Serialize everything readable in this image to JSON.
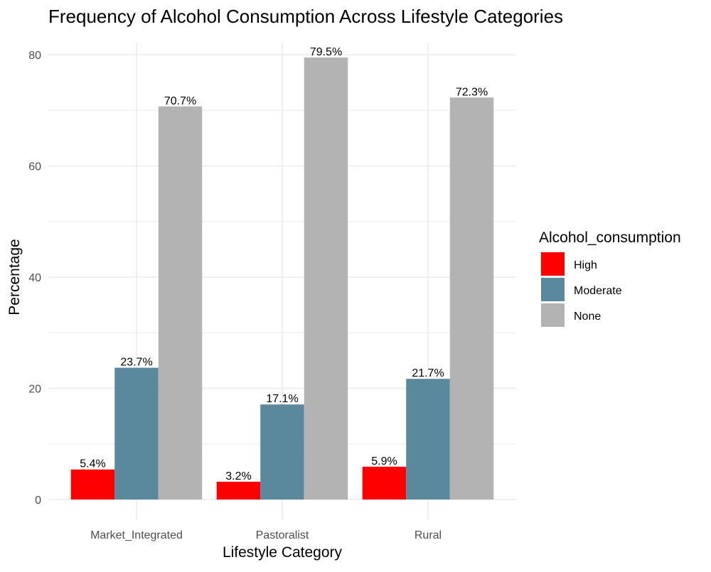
{
  "chart_data": {
    "type": "bar",
    "title": "Frequency of Alcohol Consumption Across Lifestyle Categories",
    "xlabel": "Lifestyle Category",
    "ylabel": "Percentage",
    "categories": [
      "Market_Integrated",
      "Pastoralist",
      "Rural"
    ],
    "series": [
      {
        "name": "High",
        "color": "#ff0000",
        "values": [
          5.4,
          3.2,
          5.9
        ],
        "labels": [
          "5.4%",
          "3.2%",
          "5.9%"
        ]
      },
      {
        "name": "Moderate",
        "color": "#5a889c",
        "values": [
          23.7,
          17.1,
          21.7
        ],
        "labels": [
          "23.7%",
          "17.1%",
          "21.7%"
        ]
      },
      {
        "name": "None",
        "color": "#b3b3b3",
        "values": [
          70.7,
          79.5,
          72.3
        ],
        "labels": [
          "70.7%",
          "79.5%",
          "72.3%"
        ]
      }
    ],
    "ylim": [
      0,
      80
    ],
    "yticks": [
      "0",
      "20",
      "40",
      "60",
      "80"
    ],
    "grid": true,
    "legend": {
      "title": "Alcohol_consumption",
      "position": "right"
    }
  }
}
